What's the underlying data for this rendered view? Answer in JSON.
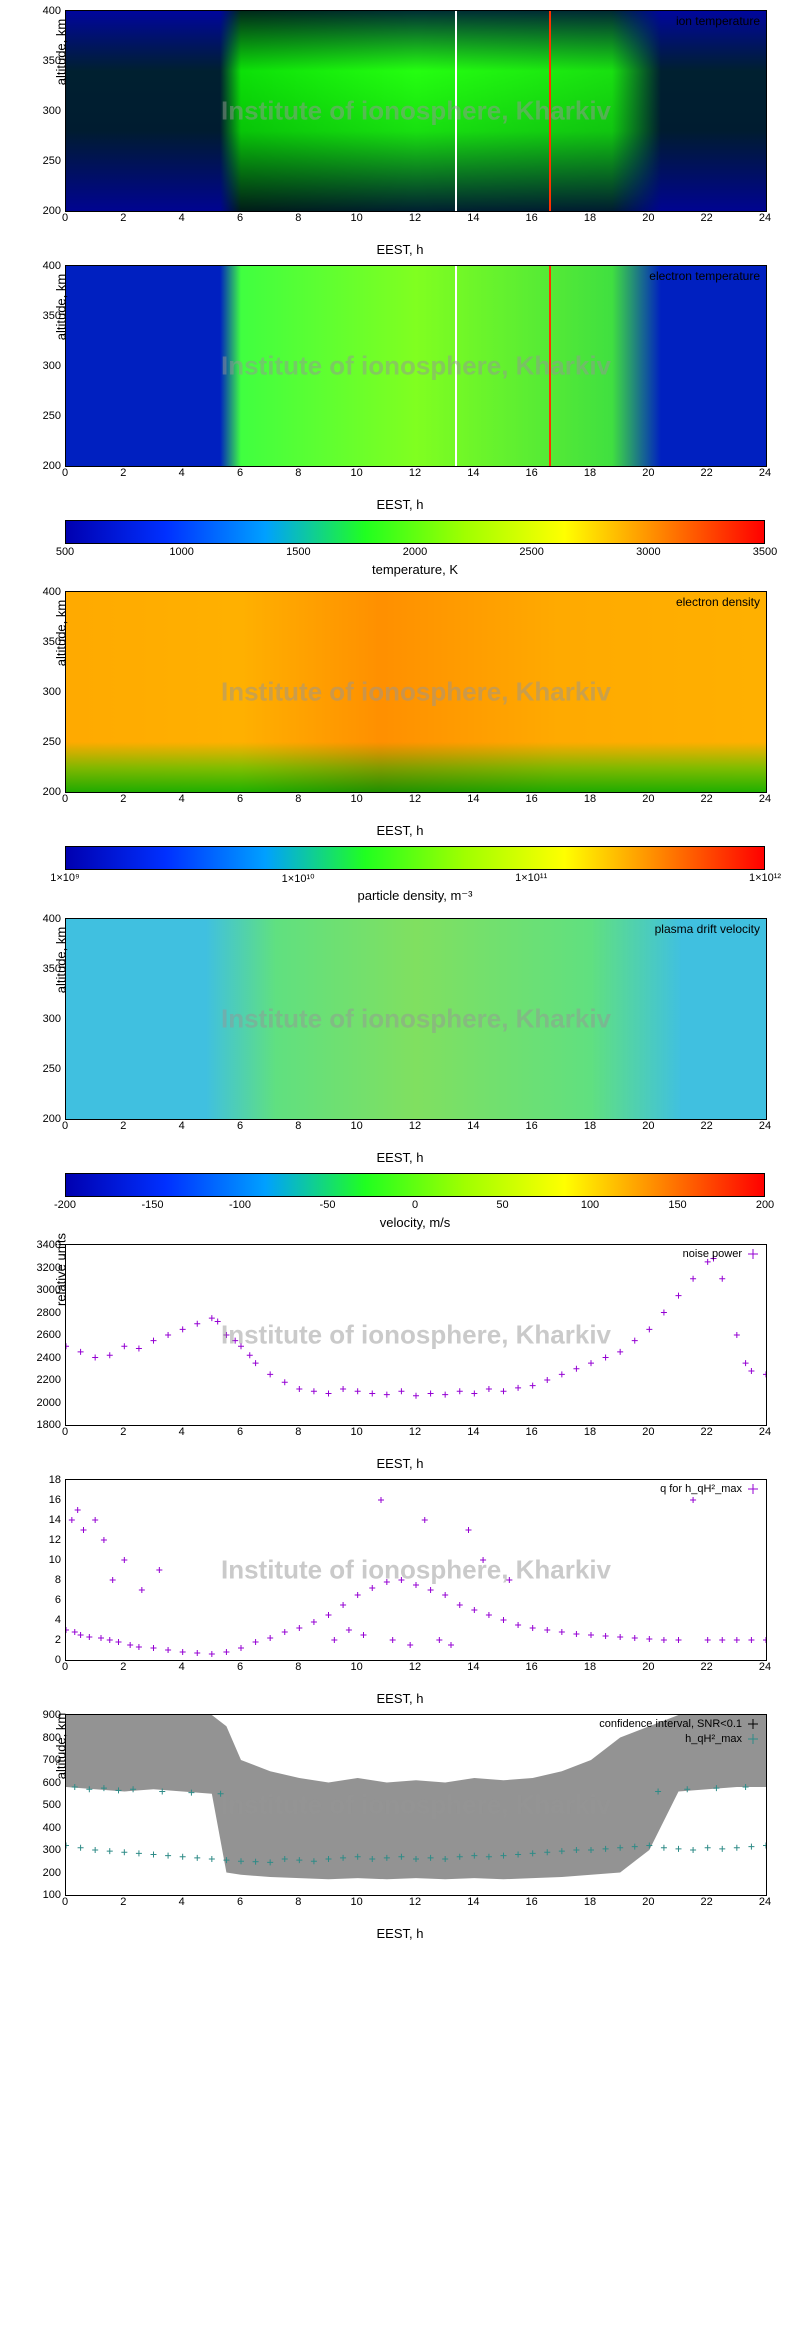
{
  "watermark": "Institute of ionosphere, Kharkiv",
  "xlabel": "EEST, h",
  "x_range": [
    0,
    24
  ],
  "x_ticks": [
    0,
    2,
    4,
    6,
    8,
    10,
    12,
    14,
    16,
    18,
    20,
    22,
    24
  ],
  "alt_ylabel": "altitude, km",
  "alt_range": [
    200,
    400
  ],
  "alt_ticks": [
    200,
    250,
    300,
    350,
    400
  ],
  "temp_cb": {
    "label": "temperature, K",
    "range": [
      500,
      3500
    ],
    "ticks": [
      500,
      1000,
      1500,
      2000,
      2500,
      3000,
      3500
    ],
    "gradient": "linear-gradient(to right,#0000b0,#0030ff,#00a0ff,#20ff20,#a0ff00,#ffff00,#ff8000,#ff0000)"
  },
  "dens_cb": {
    "label": "particle density, m⁻³",
    "range_log": [
      9,
      12
    ],
    "ticks": [
      "1×10⁹",
      "1×10¹⁰",
      "1×10¹¹",
      "1×10¹²"
    ],
    "tick_pos": [
      0,
      33.3,
      66.6,
      100
    ],
    "gradient": "linear-gradient(to right,#0000b0,#0030ff,#00a0ff,#20ff20,#a0ff00,#ffff00,#ff8000,#ff0000)"
  },
  "vel_cb": {
    "label": "velocity, m/s",
    "range": [
      -200,
      200
    ],
    "ticks": [
      -200,
      -150,
      -100,
      -50,
      0,
      50,
      100,
      150,
      200
    ],
    "gradient": "linear-gradient(to right,#0000b0,#0030ff,#00a0ff,#20ff20,#a0ff00,#ffff00,#ff8000,#ff0000)"
  },
  "panels": [
    {
      "id": "ion_temp",
      "title": "ion temperature",
      "type": "heatmap",
      "scheme": "temp"
    },
    {
      "id": "elec_temp",
      "title": "electron temperature",
      "type": "heatmap",
      "scheme": "temp",
      "cb_after": "temp"
    },
    {
      "id": "elec_dens",
      "title": "electron density",
      "type": "heatmap",
      "scheme": "dens",
      "cb_after": "dens"
    },
    {
      "id": "drift",
      "title": "plasma drift velocity",
      "type": "heatmap",
      "scheme": "vel",
      "cb_after": "vel"
    }
  ],
  "noise": {
    "title": "noise power",
    "ylabel": "relative units",
    "yrange": [
      1800,
      3400
    ],
    "yticks": [
      1800,
      2000,
      2200,
      2400,
      2600,
      2800,
      3000,
      3200,
      3400
    ],
    "color": "#9400d3",
    "data": [
      [
        0,
        2500
      ],
      [
        0.5,
        2450
      ],
      [
        1,
        2400
      ],
      [
        1.5,
        2420
      ],
      [
        2,
        2500
      ],
      [
        2.5,
        2480
      ],
      [
        3,
        2550
      ],
      [
        3.5,
        2600
      ],
      [
        4,
        2650
      ],
      [
        4.5,
        2700
      ],
      [
        5,
        2750
      ],
      [
        5.2,
        2720
      ],
      [
        5.5,
        2600
      ],
      [
        5.8,
        2550
      ],
      [
        6,
        2500
      ],
      [
        6.3,
        2420
      ],
      [
        6.5,
        2350
      ],
      [
        7,
        2250
      ],
      [
        7.5,
        2180
      ],
      [
        8,
        2120
      ],
      [
        8.5,
        2100
      ],
      [
        9,
        2080
      ],
      [
        9.5,
        2120
      ],
      [
        10,
        2100
      ],
      [
        10.5,
        2080
      ],
      [
        11,
        2070
      ],
      [
        11.5,
        2100
      ],
      [
        12,
        2060
      ],
      [
        12.5,
        2080
      ],
      [
        13,
        2070
      ],
      [
        13.5,
        2100
      ],
      [
        14,
        2080
      ],
      [
        14.5,
        2120
      ],
      [
        15,
        2100
      ],
      [
        15.5,
        2130
      ],
      [
        16,
        2150
      ],
      [
        16.5,
        2200
      ],
      [
        17,
        2250
      ],
      [
        17.5,
        2300
      ],
      [
        18,
        2350
      ],
      [
        18.5,
        2400
      ],
      [
        19,
        2450
      ],
      [
        19.5,
        2550
      ],
      [
        20,
        2650
      ],
      [
        20.5,
        2800
      ],
      [
        21,
        2950
      ],
      [
        21.5,
        3100
      ],
      [
        22,
        3250
      ],
      [
        22.2,
        3280
      ],
      [
        22.5,
        3100
      ],
      [
        23,
        2600
      ],
      [
        23.3,
        2350
      ],
      [
        23.5,
        2280
      ],
      [
        24,
        2250
      ]
    ]
  },
  "qfactor": {
    "title": "q for h_qH²_max",
    "ylabel": "",
    "yrange": [
      0,
      18
    ],
    "yticks": [
      0,
      2,
      4,
      6,
      8,
      10,
      12,
      14,
      16,
      18
    ],
    "color": "#9400d3",
    "data": [
      [
        0,
        3
      ],
      [
        0.2,
        14
      ],
      [
        0.3,
        2.8
      ],
      [
        0.4,
        15
      ],
      [
        0.5,
        2.5
      ],
      [
        0.6,
        13
      ],
      [
        0.8,
        2.3
      ],
      [
        1,
        14
      ],
      [
        1.2,
        2.2
      ],
      [
        1.3,
        12
      ],
      [
        1.5,
        2
      ],
      [
        1.6,
        8
      ],
      [
        1.8,
        1.8
      ],
      [
        2,
        10
      ],
      [
        2.2,
        1.5
      ],
      [
        2.5,
        1.3
      ],
      [
        2.6,
        7
      ],
      [
        3,
        1.2
      ],
      [
        3.2,
        9
      ],
      [
        3.5,
        1
      ],
      [
        4,
        0.8
      ],
      [
        4.5,
        0.7
      ],
      [
        5,
        0.6
      ],
      [
        5.5,
        0.8
      ],
      [
        6,
        1.2
      ],
      [
        6.5,
        1.8
      ],
      [
        7,
        2.2
      ],
      [
        7.5,
        2.8
      ],
      [
        8,
        3.2
      ],
      [
        8.5,
        3.8
      ],
      [
        9,
        4.5
      ],
      [
        9.2,
        2
      ],
      [
        9.5,
        5.5
      ],
      [
        9.7,
        3
      ],
      [
        10,
        6.5
      ],
      [
        10.2,
        2.5
      ],
      [
        10.5,
        7.2
      ],
      [
        10.8,
        16
      ],
      [
        11,
        7.8
      ],
      [
        11.2,
        2
      ],
      [
        11.5,
        8
      ],
      [
        11.8,
        1.5
      ],
      [
        12,
        7.5
      ],
      [
        12.3,
        14
      ],
      [
        12.5,
        7
      ],
      [
        12.8,
        2
      ],
      [
        13,
        6.5
      ],
      [
        13.2,
        1.5
      ],
      [
        13.5,
        5.5
      ],
      [
        13.8,
        13
      ],
      [
        14,
        5
      ],
      [
        14.3,
        10
      ],
      [
        14.5,
        4.5
      ],
      [
        15,
        4
      ],
      [
        15.2,
        8
      ],
      [
        15.5,
        3.5
      ],
      [
        16,
        3.2
      ],
      [
        16.5,
        3
      ],
      [
        17,
        2.8
      ],
      [
        17.5,
        2.6
      ],
      [
        18,
        2.5
      ],
      [
        18.5,
        2.4
      ],
      [
        19,
        2.3
      ],
      [
        19.5,
        2.2
      ],
      [
        20,
        2.1
      ],
      [
        20.5,
        2
      ],
      [
        21,
        2
      ],
      [
        21.5,
        16
      ],
      [
        22,
        2
      ],
      [
        22.5,
        2
      ],
      [
        23,
        2
      ],
      [
        23.5,
        2
      ],
      [
        24,
        2
      ]
    ]
  },
  "confidence": {
    "title": "confidence interval, SNR<0.1",
    "legend2": "h_qH²_max",
    "ylabel": "altitude, km",
    "yrange": [
      100,
      900
    ],
    "yticks": [
      100,
      200,
      300,
      400,
      500,
      600,
      700,
      800,
      900
    ],
    "color_pts": "#2e8b87",
    "color_ci": "#808080",
    "ci_top": [
      [
        0,
        900
      ],
      [
        1,
        900
      ],
      [
        2,
        900
      ],
      [
        3,
        900
      ],
      [
        4,
        900
      ],
      [
        5,
        900
      ],
      [
        5.5,
        850
      ],
      [
        6,
        700
      ],
      [
        7,
        650
      ],
      [
        8,
        620
      ],
      [
        9,
        600
      ],
      [
        10,
        620
      ],
      [
        11,
        600
      ],
      [
        12,
        610
      ],
      [
        13,
        600
      ],
      [
        14,
        620
      ],
      [
        15,
        610
      ],
      [
        16,
        620
      ],
      [
        17,
        650
      ],
      [
        18,
        700
      ],
      [
        19,
        800
      ],
      [
        20,
        850
      ],
      [
        21,
        900
      ],
      [
        22,
        900
      ],
      [
        23,
        900
      ],
      [
        24,
        900
      ]
    ],
    "ci_bot": [
      [
        0,
        580
      ],
      [
        1,
        570
      ],
      [
        2,
        560
      ],
      [
        3,
        570
      ],
      [
        4,
        560
      ],
      [
        5,
        550
      ],
      [
        5.5,
        200
      ],
      [
        6,
        190
      ],
      [
        7,
        180
      ],
      [
        8,
        175
      ],
      [
        9,
        170
      ],
      [
        10,
        175
      ],
      [
        11,
        170
      ],
      [
        12,
        175
      ],
      [
        13,
        170
      ],
      [
        14,
        175
      ],
      [
        15,
        170
      ],
      [
        16,
        175
      ],
      [
        17,
        180
      ],
      [
        18,
        190
      ],
      [
        19,
        200
      ],
      [
        20,
        300
      ],
      [
        21,
        560
      ],
      [
        22,
        570
      ],
      [
        23,
        580
      ],
      [
        24,
        580
      ]
    ],
    "data": [
      [
        0,
        320
      ],
      [
        0.3,
        580
      ],
      [
        0.5,
        310
      ],
      [
        0.8,
        570
      ],
      [
        1,
        300
      ],
      [
        1.3,
        575
      ],
      [
        1.5,
        295
      ],
      [
        1.8,
        565
      ],
      [
        2,
        290
      ],
      [
        2.3,
        570
      ],
      [
        2.5,
        285
      ],
      [
        3,
        280
      ],
      [
        3.3,
        560
      ],
      [
        3.5,
        275
      ],
      [
        4,
        270
      ],
      [
        4.3,
        555
      ],
      [
        4.5,
        265
      ],
      [
        5,
        260
      ],
      [
        5.3,
        550
      ],
      [
        5.5,
        255
      ],
      [
        6,
        250
      ],
      [
        6.5,
        248
      ],
      [
        7,
        245
      ],
      [
        7.5,
        260
      ],
      [
        8,
        255
      ],
      [
        8.5,
        250
      ],
      [
        9,
        260
      ],
      [
        9.5,
        265
      ],
      [
        10,
        270
      ],
      [
        10.5,
        260
      ],
      [
        11,
        265
      ],
      [
        11.5,
        270
      ],
      [
        12,
        260
      ],
      [
        12.5,
        265
      ],
      [
        13,
        260
      ],
      [
        13.5,
        270
      ],
      [
        14,
        275
      ],
      [
        14.5,
        270
      ],
      [
        15,
        275
      ],
      [
        15.5,
        280
      ],
      [
        16,
        285
      ],
      [
        16.5,
        290
      ],
      [
        17,
        295
      ],
      [
        17.5,
        300
      ],
      [
        18,
        300
      ],
      [
        18.5,
        305
      ],
      [
        19,
        310
      ],
      [
        19.5,
        315
      ],
      [
        20,
        320
      ],
      [
        20.3,
        560
      ],
      [
        20.5,
        310
      ],
      [
        21,
        305
      ],
      [
        21.3,
        570
      ],
      [
        21.5,
        300
      ],
      [
        22,
        310
      ],
      [
        22.3,
        575
      ],
      [
        22.5,
        305
      ],
      [
        23,
        310
      ],
      [
        23.3,
        580
      ],
      [
        23.5,
        315
      ],
      [
        24,
        320
      ]
    ]
  }
}
